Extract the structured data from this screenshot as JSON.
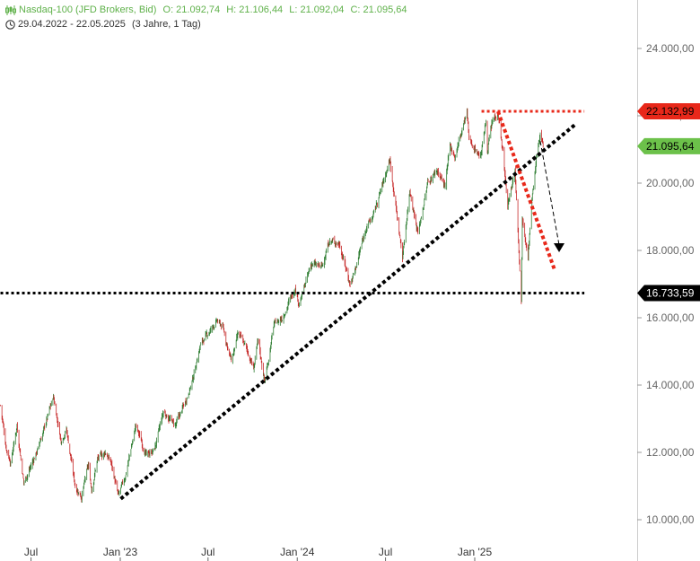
{
  "header": {
    "instrument": "Nasdaq-100 (JFD Brokers, Bid)",
    "open": "O: 21.092,74",
    "high": "H: 21.106,44",
    "low": "L: 21.092,04",
    "close": "C: 21.095,64",
    "date_range": "29.04.2022 - 22.05.2025",
    "period": "(3 Jahre, 1 Tag)"
  },
  "colors": {
    "up": "#2e7d32",
    "down": "#c62828",
    "header_green": "#5fb14a",
    "resistance_red": "#e8281a",
    "last_price_green": "#6cc14a",
    "support_black": "#000000"
  },
  "icons": [
    "candles-icon",
    "clock-icon"
  ],
  "chart_data": {
    "type": "candlestick",
    "y_axis": {
      "min": 9700,
      "max": 25200,
      "ticks": [
        10000,
        12000,
        14000,
        16000,
        18000,
        20000,
        22000,
        24000
      ],
      "tick_labels": [
        "10.000,00",
        "12.000,00",
        "14.000,00",
        "16.000,00",
        "18.000,00",
        "20.000,00",
        "22.000,00",
        "24.000,00"
      ],
      "side": "right"
    },
    "x_axis": {
      "start": "2022-04-29",
      "end": "2025-05-22",
      "ticks": [
        "2022-07-01",
        "2023-01-01",
        "2023-07-01",
        "2024-01-01",
        "2024-07-01",
        "2025-01-01"
      ],
      "tick_labels": [
        "Jul",
        "Jan '23",
        "Jul",
        "Jan '24",
        "Jul",
        "Jan '25"
      ]
    },
    "price_path": [
      [
        "2022-04-29",
        13400
      ],
      [
        "2022-05-10",
        12200
      ],
      [
        "2022-05-20",
        11700
      ],
      [
        "2022-06-02",
        12800
      ],
      [
        "2022-06-16",
        11100
      ],
      [
        "2022-07-01",
        11600
      ],
      [
        "2022-07-15",
        12100
      ],
      [
        "2022-08-01",
        12900
      ],
      [
        "2022-08-16",
        13650
      ],
      [
        "2022-09-01",
        12350
      ],
      [
        "2022-09-12",
        12700
      ],
      [
        "2022-09-30",
        11000
      ],
      [
        "2022-10-13",
        10700
      ],
      [
        "2022-10-27",
        11600
      ],
      [
        "2022-11-03",
        10900
      ],
      [
        "2022-11-15",
        11800
      ],
      [
        "2022-12-01",
        12000
      ],
      [
        "2022-12-13",
        11700
      ],
      [
        "2022-12-28",
        10700
      ],
      [
        "2023-01-10",
        11200
      ],
      [
        "2023-02-02",
        12800
      ],
      [
        "2023-02-24",
        11900
      ],
      [
        "2023-03-13",
        12100
      ],
      [
        "2023-03-31",
        13200
      ],
      [
        "2023-04-25",
        12800
      ],
      [
        "2023-05-15",
        13500
      ],
      [
        "2023-05-31",
        14200
      ],
      [
        "2023-06-15",
        15200
      ],
      [
        "2023-07-19",
        15900
      ],
      [
        "2023-08-01",
        15700
      ],
      [
        "2023-08-18",
        14700
      ],
      [
        "2023-09-01",
        15500
      ],
      [
        "2023-09-15",
        15200
      ],
      [
        "2023-10-03",
        14500
      ],
      [
        "2023-10-12",
        15300
      ],
      [
        "2023-10-26",
        14100
      ],
      [
        "2023-11-14",
        15800
      ],
      [
        "2023-12-01",
        16000
      ],
      [
        "2023-12-28",
        16900
      ],
      [
        "2024-01-05",
        16400
      ],
      [
        "2024-01-30",
        17600
      ],
      [
        "2024-02-21",
        17500
      ],
      [
        "2024-03-07",
        18300
      ],
      [
        "2024-03-28",
        18200
      ],
      [
        "2024-04-19",
        17000
      ],
      [
        "2024-05-01",
        17500
      ],
      [
        "2024-05-22",
        18700
      ],
      [
        "2024-06-05",
        19000
      ],
      [
        "2024-07-10",
        20700
      ],
      [
        "2024-07-25",
        19000
      ],
      [
        "2024-08-05",
        17800
      ],
      [
        "2024-08-20",
        19800
      ],
      [
        "2024-09-06",
        18500
      ],
      [
        "2024-09-26",
        20000
      ],
      [
        "2024-10-15",
        20400
      ],
      [
        "2024-11-01",
        19900
      ],
      [
        "2024-11-11",
        21100
      ],
      [
        "2024-11-21",
        20800
      ],
      [
        "2024-12-16",
        22100
      ],
      [
        "2024-12-20",
        21300
      ],
      [
        "2025-01-13",
        20800
      ],
      [
        "2025-01-24",
        21800
      ],
      [
        "2025-01-27",
        21000
      ],
      [
        "2025-02-06",
        21800
      ],
      [
        "2025-02-18",
        22130
      ],
      [
        "2025-02-28",
        20900
      ],
      [
        "2025-03-10",
        19300
      ],
      [
        "2025-03-25",
        20400
      ],
      [
        "2025-04-04",
        17500
      ],
      [
        "2025-04-07",
        16540
      ],
      [
        "2025-04-09",
        19000
      ],
      [
        "2025-04-21",
        17900
      ],
      [
        "2025-05-01",
        19800
      ],
      [
        "2025-05-12",
        21200
      ],
      [
        "2025-05-16",
        21400
      ],
      [
        "2025-05-22",
        21095
      ]
    ],
    "drawn_lines": [
      {
        "name": "resistance",
        "style": "dotted",
        "color": "#e8281a",
        "from": [
          "2025-01-15",
          22132.99
        ],
        "to": [
          "2025-08-15",
          22132.99
        ]
      },
      {
        "name": "support",
        "style": "dotted",
        "color": "#000000",
        "from": [
          "2022-04-29",
          16733.59
        ],
        "to": [
          "2025-08-15",
          16733.59
        ]
      },
      {
        "name": "uptrend",
        "style": "dotted",
        "color": "#000000",
        "from": [
          "2023-01-02",
          10620
        ],
        "to": [
          "2025-07-28",
          21750
        ]
      },
      {
        "name": "downtrend",
        "style": "dotted",
        "color": "#e8281a",
        "from": [
          "2025-02-18",
          22130
        ],
        "to": [
          "2025-06-14",
          17450
        ]
      },
      {
        "name": "projection",
        "style": "dashed-arrow",
        "color": "#000000",
        "from": [
          "2025-05-16",
          21250
        ],
        "to": [
          "2025-06-24",
          18000
        ]
      }
    ],
    "price_labels": [
      {
        "name": "resistance",
        "text": "22.132,99",
        "value": 22132.99,
        "color": "#e8281a",
        "text_color": "#000000"
      },
      {
        "name": "last-price",
        "text": "21.095,64",
        "value": 21095.64,
        "color": "#6cc14a",
        "text_color": "#000000"
      },
      {
        "name": "support",
        "text": "16.733,59",
        "value": 16733.59,
        "color": "#000000",
        "text_color": "#ffffff"
      }
    ],
    "grid": false
  }
}
